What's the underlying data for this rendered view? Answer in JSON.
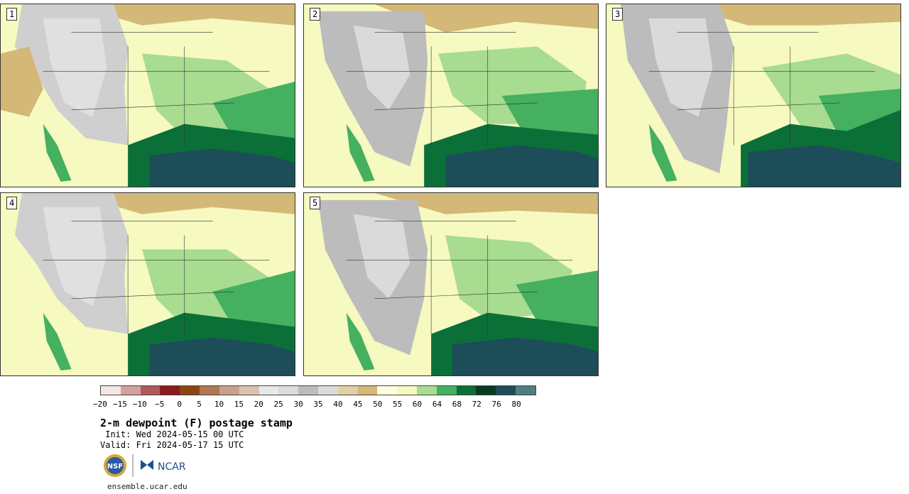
{
  "panels": [
    {
      "label": "1"
    },
    {
      "label": "2"
    },
    {
      "label": "3"
    },
    {
      "label": "4"
    },
    {
      "label": "5"
    }
  ],
  "colorbar": {
    "colors": [
      "#f5e6e6",
      "#d4a0a0",
      "#b05858",
      "#8b1a1a",
      "#8b4513",
      "#b07850",
      "#c8a08a",
      "#dcc0b0",
      "#e8e8e8",
      "#dcdcdc",
      "#bcbcbc",
      "#dadada",
      "#e0d0a8",
      "#d4b878",
      "#fdfde0",
      "#f6f9c0",
      "#a8dc90",
      "#44b060",
      "#0a7038",
      "#083a20",
      "#1c4d58",
      "#507e80"
    ],
    "ticks": [
      "−20",
      "−15",
      "−10",
      "−5",
      "0",
      "5",
      "10",
      "15",
      "20",
      "25",
      "30",
      "35",
      "40",
      "45",
      "50",
      "55",
      "60",
      "64",
      "68",
      "72",
      "76",
      "80"
    ]
  },
  "title": "2-m dewpoint (F) postage stamp",
  "init": " Init: Wed 2024-05-15 00 UTC",
  "valid": "Valid: Fri 2024-05-17 15 UTC",
  "logos": {
    "nsf_text": "NSF",
    "ncar_text": "NCAR"
  },
  "footer": "ensemble.ucar.edu"
}
